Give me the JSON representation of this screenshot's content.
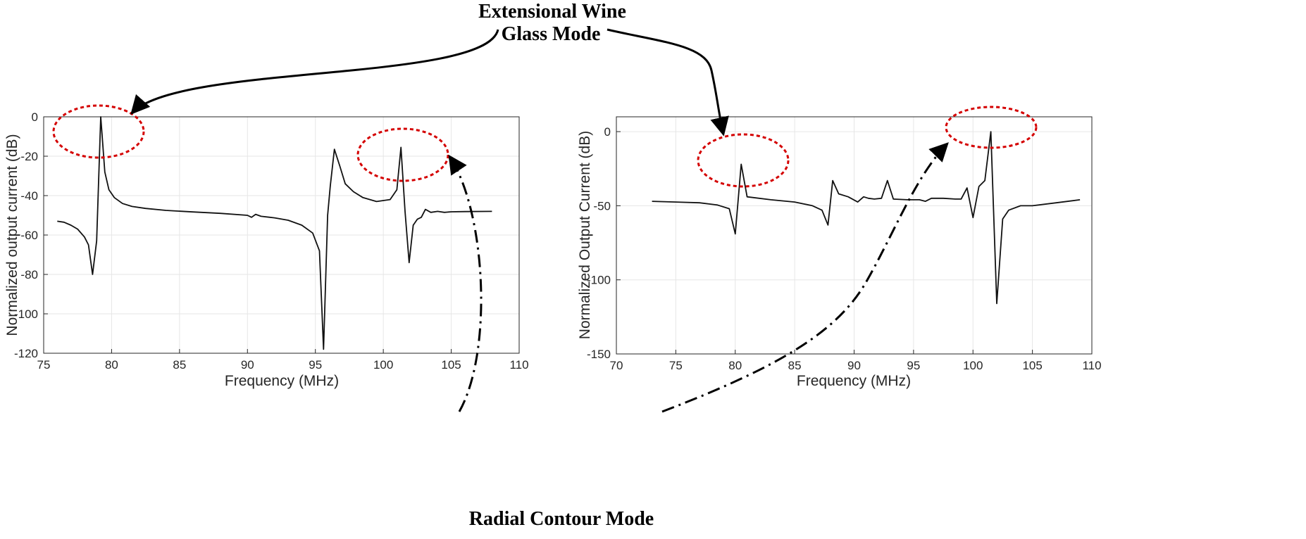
{
  "annotations": {
    "top_line1": "Extensional Wine",
    "top_line2": "Glass Mode",
    "bottom": "Radial Contour Mode"
  },
  "chart_data": [
    {
      "type": "line",
      "xlabel": "Frequency (MHz)",
      "ylabel": "Normalized output current (dB)",
      "xlim": [
        75,
        110
      ],
      "ylim": [
        -120,
        0
      ],
      "xticks": [
        75,
        80,
        85,
        90,
        95,
        100,
        105,
        110
      ],
      "yticks": [
        0,
        -20,
        -40,
        -60,
        -80,
        -100,
        -120
      ],
      "grid": true,
      "series": [
        {
          "x": [
            76.0,
            76.5,
            77.0,
            77.5,
            78.0,
            78.3,
            78.6,
            78.9,
            79.2,
            79.5,
            79.8,
            80.2,
            80.8,
            81.5,
            82.5,
            84.0,
            86.0,
            88.0,
            90.0,
            90.3,
            90.6,
            91.0,
            92.0,
            93.0,
            94.0,
            94.8,
            95.3,
            95.6,
            95.9,
            96.1,
            96.4,
            96.8,
            97.2,
            97.8,
            98.5,
            99.5,
            100.5,
            101.0,
            101.3,
            101.6,
            101.9,
            102.2,
            102.5,
            102.8,
            103.1,
            103.5,
            104.0,
            104.5,
            105.0,
            106.0,
            108.0
          ],
          "y": [
            -53,
            -53.5,
            -55,
            -57,
            -61,
            -65,
            -80,
            -63,
            0,
            -28,
            -37,
            -41,
            -44,
            -45.5,
            -46.5,
            -47.5,
            -48.3,
            -49,
            -50,
            -51,
            -49.5,
            -50.5,
            -51.3,
            -52.5,
            -55,
            -59,
            -68,
            -118,
            -50,
            -35,
            -16.5,
            -25,
            -34,
            -38,
            -41,
            -43,
            -42,
            -37,
            -15.5,
            -48,
            -74,
            -55,
            -52,
            -51,
            -47,
            -48.5,
            -48,
            -48.5,
            -48.2,
            -48.1,
            -48
          ]
        }
      ]
    },
    {
      "type": "line",
      "xlabel": "Frequency (MHz)",
      "ylabel": "Normalized Output Current (dB)",
      "xlim": [
        70,
        110
      ],
      "ylim": [
        -150,
        10
      ],
      "xticks": [
        70,
        75,
        80,
        85,
        90,
        95,
        100,
        105,
        110
      ],
      "yticks": [
        0,
        -50,
        -100,
        -150
      ],
      "grid": true,
      "series": [
        {
          "x": [
            73.0,
            75.0,
            77.0,
            78.5,
            79.5,
            80.0,
            80.5,
            81.0,
            83.0,
            85.0,
            86.5,
            87.3,
            87.8,
            88.2,
            88.7,
            89.5,
            90.3,
            90.8,
            91.2,
            91.7,
            92.3,
            92.8,
            93.3,
            94.5,
            95.5,
            96.0,
            96.5,
            97.5,
            98.5,
            99.0,
            99.5,
            100.0,
            100.5,
            101.0,
            101.5,
            102.0,
            102.5,
            103.0,
            104.0,
            105.0,
            107.0,
            109.0
          ],
          "y": [
            -47,
            -47.5,
            -48,
            -49.5,
            -52,
            -69,
            -22,
            -44,
            -46,
            -47.5,
            -50,
            -53,
            -63,
            -33,
            -42,
            -44,
            -47.5,
            -44,
            -45,
            -45.5,
            -45,
            -33,
            -45.5,
            -46,
            -46,
            -47,
            -45,
            -45,
            -45.5,
            -45.5,
            -38,
            -58,
            -37,
            -33,
            0,
            -116,
            -59,
            -53,
            -50,
            -50,
            -48,
            -46
          ]
        }
      ]
    }
  ]
}
